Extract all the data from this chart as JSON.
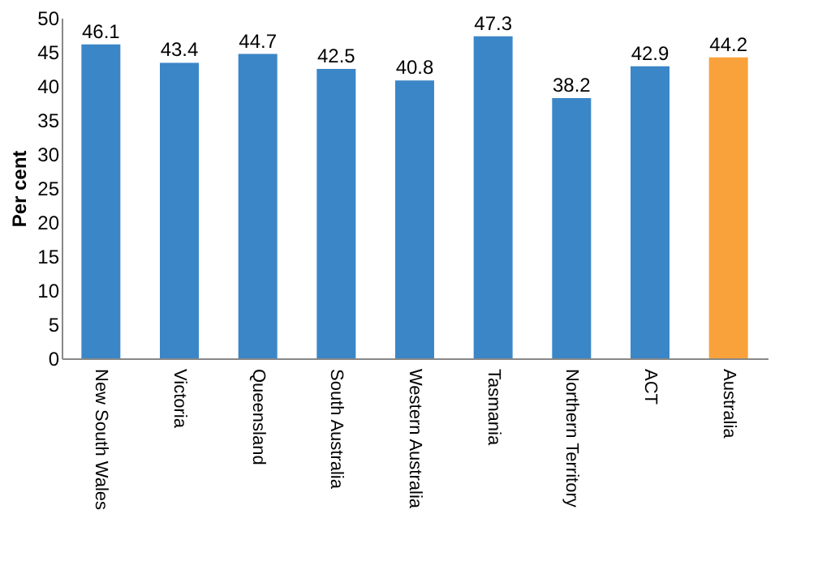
{
  "chart_data": {
    "type": "bar",
    "ylabel": "Per cent",
    "categories": [
      "New South Wales",
      "Victoria",
      "Queensland",
      "South Australia",
      "Western Australia",
      "Tasmania",
      "Northern Territory",
      "ACT",
      "Australia"
    ],
    "values": [
      46.1,
      43.4,
      44.7,
      42.5,
      40.8,
      47.3,
      38.2,
      42.9,
      44.2
    ],
    "colors": [
      "#3b86c7",
      "#3b86c7",
      "#3b86c7",
      "#3b86c7",
      "#3b86c7",
      "#3b86c7",
      "#3b86c7",
      "#3b86c7",
      "#f9a13b"
    ],
    "ylim": [
      0,
      50
    ],
    "yticks": [
      0,
      5,
      10,
      15,
      20,
      25,
      30,
      35,
      40,
      45,
      50
    ],
    "grid": false,
    "data_labels": true
  }
}
